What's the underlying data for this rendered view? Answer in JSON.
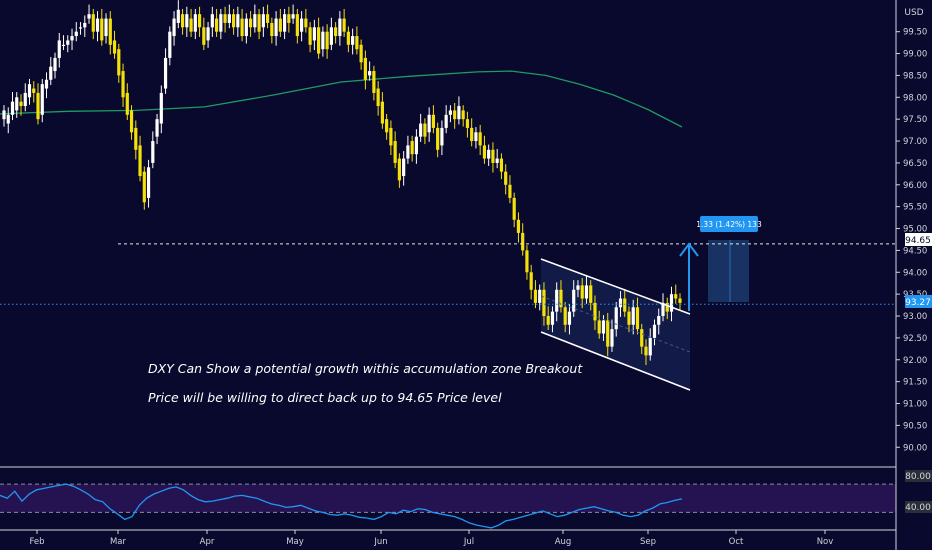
{
  "chart_data": {
    "type": "candlestick",
    "currency_label": "USD",
    "price_ticks": [
      "99.50",
      "99.00",
      "98.50",
      "98.00",
      "97.50",
      "97.00",
      "96.50",
      "96.00",
      "95.50",
      "95.00",
      "94.50",
      "94.00",
      "93.50",
      "93.00",
      "92.50",
      "92.00",
      "91.50",
      "91.00",
      "90.50",
      "90.00"
    ],
    "ylim": [
      89.8,
      99.95
    ],
    "x_ticks": [
      "Feb",
      "Mar",
      "Apr",
      "May",
      "Jun",
      "Jul",
      "Aug",
      "Sep",
      "Oct",
      "Nov"
    ],
    "price_badges": {
      "target": "94.65",
      "current": "93.27"
    },
    "target_level": 94.65,
    "current_price": 93.27,
    "measure_label": "1.33 (1.42%) 133",
    "annotations": [
      "DXY Can Show a potential growth withis accumulation zone Breakout",
      "Price will be willing to direct back up to 94.65 Price level"
    ],
    "ohlc_path": [
      [
        97.5,
        97.7
      ],
      [
        97.4,
        97.6
      ],
      [
        97.6,
        97.9
      ],
      [
        97.7,
        98.0
      ],
      [
        97.9,
        97.8
      ],
      [
        97.8,
        98.1
      ],
      [
        98.0,
        98.3
      ],
      [
        98.2,
        98.1
      ],
      [
        98.1,
        97.5
      ],
      [
        97.6,
        98.3
      ],
      [
        98.2,
        98.4
      ],
      [
        98.4,
        98.7
      ],
      [
        98.6,
        98.9
      ],
      [
        98.9,
        99.3
      ],
      [
        99.2,
        99.2
      ],
      [
        99.2,
        99.3
      ],
      [
        99.3,
        99.4
      ],
      [
        99.4,
        99.5
      ],
      [
        99.6,
        99.6
      ],
      [
        99.6,
        99.7
      ],
      [
        99.8,
        99.9
      ],
      [
        99.9,
        99.5
      ],
      [
        99.5,
        99.8
      ],
      [
        99.8,
        99.3
      ],
      [
        99.4,
        99.8
      ],
      [
        99.8,
        99.2
      ],
      [
        99.3,
        99.0
      ],
      [
        99.1,
        98.5
      ],
      [
        98.6,
        98.0
      ],
      [
        98.1,
        97.6
      ],
      [
        97.7,
        97.2
      ],
      [
        97.3,
        96.8
      ],
      [
        96.9,
        96.2
      ],
      [
        96.3,
        95.6
      ],
      [
        95.7,
        96.4
      ],
      [
        96.5,
        97.0
      ],
      [
        97.1,
        97.5
      ],
      [
        97.4,
        98.1
      ],
      [
        98.2,
        98.9
      ],
      [
        98.9,
        99.5
      ],
      [
        99.4,
        99.8
      ],
      [
        99.7,
        100.0
      ],
      [
        99.9,
        99.6
      ],
      [
        99.6,
        99.9
      ],
      [
        99.8,
        99.5
      ],
      [
        99.5,
        99.9
      ],
      [
        99.9,
        99.6
      ],
      [
        99.6,
        99.2
      ],
      [
        99.3,
        99.6
      ],
      [
        99.6,
        99.9
      ],
      [
        99.8,
        99.5
      ],
      [
        99.5,
        99.9
      ],
      [
        99.9,
        99.7
      ],
      [
        99.7,
        99.9
      ],
      [
        99.9,
        99.6
      ],
      [
        99.6,
        99.9
      ],
      [
        99.8,
        99.4
      ],
      [
        99.4,
        99.8
      ],
      [
        99.8,
        99.6
      ],
      [
        99.6,
        99.9
      ],
      [
        99.9,
        99.5
      ],
      [
        99.6,
        99.9
      ],
      [
        99.9,
        99.7
      ],
      [
        99.7,
        99.4
      ],
      [
        99.4,
        99.8
      ],
      [
        99.8,
        99.5
      ],
      [
        99.5,
        99.9
      ],
      [
        99.9,
        99.7
      ],
      [
        99.8,
        99.9
      ],
      [
        99.9,
        99.4
      ],
      [
        99.5,
        99.8
      ],
      [
        99.8,
        99.6
      ],
      [
        99.6,
        99.2
      ],
      [
        99.3,
        99.6
      ],
      [
        99.6,
        99.0
      ],
      [
        99.1,
        99.5
      ],
      [
        99.5,
        99.1
      ],
      [
        99.2,
        99.6
      ],
      [
        99.6,
        99.4
      ],
      [
        99.4,
        99.8
      ],
      [
        99.8,
        99.5
      ],
      [
        99.5,
        99.2
      ],
      [
        99.2,
        99.4
      ],
      [
        99.4,
        99.1
      ],
      [
        99.2,
        98.8
      ],
      [
        98.9,
        98.4
      ],
      [
        98.5,
        98.6
      ],
      [
        98.6,
        98.1
      ],
      [
        98.2,
        97.8
      ],
      [
        97.9,
        97.4
      ],
      [
        97.5,
        97.2
      ],
      [
        97.3,
        96.9
      ],
      [
        97.0,
        96.5
      ],
      [
        96.6,
        96.1
      ],
      [
        96.2,
        96.6
      ],
      [
        96.6,
        96.9
      ],
      [
        97.0,
        96.7
      ],
      [
        96.7,
        97.1
      ],
      [
        97.1,
        97.4
      ],
      [
        97.4,
        97.1
      ],
      [
        97.2,
        97.6
      ],
      [
        97.6,
        97.3
      ],
      [
        97.3,
        96.8
      ],
      [
        96.9,
        97.3
      ],
      [
        97.3,
        97.6
      ],
      [
        97.6,
        97.7
      ],
      [
        97.7,
        97.5
      ],
      [
        97.5,
        97.8
      ],
      [
        97.7,
        97.5
      ],
      [
        97.5,
        97.3
      ],
      [
        97.3,
        97.0
      ],
      [
        97.0,
        97.2
      ],
      [
        97.2,
        96.9
      ],
      [
        96.9,
        96.6
      ],
      [
        96.6,
        96.8
      ],
      [
        96.8,
        96.5
      ],
      [
        96.5,
        96.6
      ],
      [
        96.6,
        96.3
      ],
      [
        96.3,
        96.0
      ],
      [
        96.0,
        95.7
      ],
      [
        95.7,
        95.2
      ],
      [
        95.2,
        94.9
      ],
      [
        94.9,
        94.5
      ],
      [
        94.5,
        94.0
      ],
      [
        94.0,
        93.6
      ],
      [
        93.6,
        93.3
      ],
      [
        93.3,
        93.6
      ],
      [
        93.6,
        93.0
      ],
      [
        93.0,
        92.8
      ],
      [
        92.8,
        93.1
      ],
      [
        93.1,
        93.6
      ],
      [
        93.6,
        93.2
      ],
      [
        93.2,
        92.8
      ],
      [
        92.8,
        93.1
      ],
      [
        93.1,
        93.6
      ],
      [
        93.6,
        93.7
      ],
      [
        93.7,
        93.4
      ],
      [
        93.4,
        93.7
      ],
      [
        93.7,
        93.3
      ],
      [
        93.3,
        92.9
      ],
      [
        92.9,
        92.6
      ],
      [
        92.6,
        92.9
      ],
      [
        92.9,
        92.3
      ],
      [
        92.3,
        92.7
      ],
      [
        92.7,
        93.2
      ],
      [
        93.2,
        93.4
      ],
      [
        93.4,
        93.1
      ],
      [
        93.1,
        92.8
      ],
      [
        92.8,
        93.2
      ],
      [
        93.2,
        92.7
      ],
      [
        92.7,
        92.3
      ],
      [
        92.3,
        92.1
      ],
      [
        92.1,
        92.5
      ],
      [
        92.5,
        92.8
      ],
      [
        92.8,
        93.0
      ],
      [
        93.0,
        93.3
      ],
      [
        93.3,
        93.1
      ],
      [
        93.1,
        93.5
      ],
      [
        93.5,
        93.4
      ],
      [
        93.4,
        93.3
      ]
    ],
    "ma_path": [
      [
        0,
        97.62
      ],
      [
        0.1,
        97.68
      ],
      [
        0.2,
        97.7
      ],
      [
        0.3,
        97.78
      ],
      [
        0.4,
        98.05
      ],
      [
        0.5,
        98.35
      ],
      [
        0.6,
        98.48
      ],
      [
        0.7,
        98.58
      ],
      [
        0.75,
        98.6
      ],
      [
        0.8,
        98.5
      ],
      [
        0.85,
        98.3
      ],
      [
        0.9,
        98.05
      ],
      [
        0.95,
        97.72
      ],
      [
        1,
        97.32
      ]
    ],
    "oscillator": {
      "upper_level": "80.00",
      "lower_level": "40.00",
      "values": [
        64,
        60,
        70,
        56,
        66,
        72,
        74,
        76,
        78,
        80,
        77,
        72,
        66,
        58,
        55,
        45,
        38,
        30,
        34,
        50,
        60,
        66,
        70,
        74,
        76,
        72,
        64,
        58,
        55,
        56,
        58,
        60,
        63,
        64,
        62,
        60,
        56,
        52,
        50,
        47,
        48,
        50,
        46,
        42,
        40,
        37,
        36,
        38,
        36,
        33,
        32,
        30,
        34,
        40,
        38,
        43,
        41,
        45,
        44,
        40,
        38,
        36,
        34,
        30,
        25,
        22,
        20,
        18,
        22,
        28,
        30,
        33,
        36,
        39,
        42,
        38,
        34,
        36,
        40,
        44,
        46,
        48,
        45,
        42,
        40,
        36,
        34,
        36,
        42,
        46,
        52,
        54,
        57,
        59
      ]
    }
  }
}
